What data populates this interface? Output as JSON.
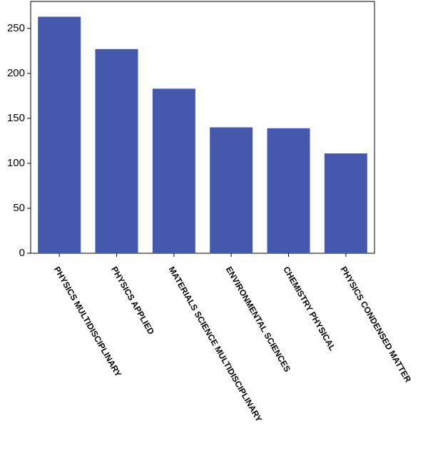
{
  "chart_data": {
    "type": "bar",
    "categories": [
      "PHYSICS MULTIDISCIPLINARY",
      "PHYSICS APPLIED",
      "MATERIALS SCIENCE MULTIDISCIPLINARY",
      "ENVIRONMENTAL SCIENCES",
      "CHEMISTRY PHYSICAL",
      "PHYSICS CONDENSED MATTER"
    ],
    "values": [
      263,
      227,
      183,
      140,
      139,
      111
    ],
    "color": "#4659ad",
    "ylim": [
      0,
      280
    ],
    "yticks": [
      0,
      50,
      100,
      150,
      200,
      250
    ],
    "grid": false
  }
}
